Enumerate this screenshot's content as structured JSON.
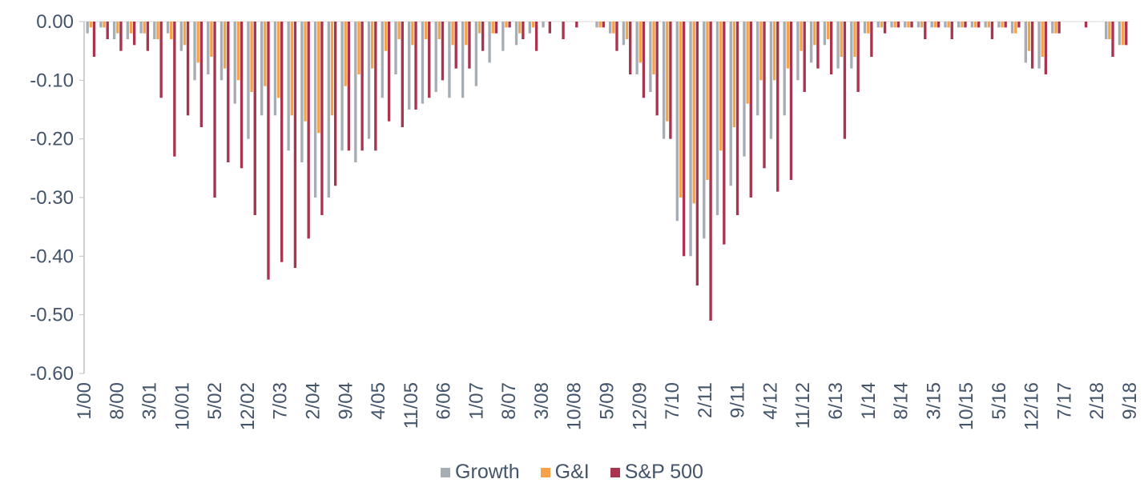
{
  "chart_data": {
    "type": "bar",
    "title": "",
    "xlabel": "",
    "ylabel": "",
    "ylim": [
      -0.6,
      0.0
    ],
    "y_ticks": [
      "0.00",
      "-0.10",
      "-0.20",
      "-0.30",
      "-0.40",
      "-0.50",
      "-0.60"
    ],
    "x_ticks": [
      "1/00",
      "8/00",
      "3/01",
      "10/01",
      "5/02",
      "12/02",
      "7/03",
      "2/04",
      "9/04",
      "4/05",
      "11/05",
      "6/06",
      "1/07",
      "8/07",
      "3/08",
      "10/08",
      "5/09",
      "12/09",
      "7/10",
      "2/11",
      "9/11",
      "4/12",
      "11/12",
      "6/13",
      "1/14",
      "8/14",
      "3/15",
      "10/15",
      "5/16",
      "12/16",
      "7/17",
      "2/18",
      "9/18"
    ],
    "legend_placement": "bottom",
    "grid": false,
    "series": [
      {
        "name": "Growth",
        "color": "#a6adb4",
        "values": [
          -0.02,
          -0.01,
          -0.03,
          -0.03,
          -0.02,
          -0.03,
          -0.02,
          -0.05,
          -0.1,
          -0.09,
          -0.1,
          -0.14,
          -0.2,
          -0.16,
          -0.16,
          -0.22,
          -0.24,
          -0.3,
          -0.3,
          -0.22,
          -0.24,
          -0.2,
          -0.13,
          -0.09,
          -0.15,
          -0.14,
          -0.12,
          -0.13,
          -0.13,
          -0.11,
          -0.07,
          -0.05,
          -0.04,
          -0.02,
          -0.01,
          0.0,
          0.0,
          0.0,
          -0.01,
          -0.02,
          -0.04,
          -0.09,
          -0.12,
          -0.2,
          -0.34,
          -0.4,
          -0.37,
          -0.33,
          -0.28,
          -0.23,
          -0.16,
          -0.2,
          -0.16,
          -0.1,
          -0.07,
          -0.04,
          -0.08,
          -0.08,
          -0.02,
          -0.01,
          -0.01,
          -0.01,
          -0.01,
          -0.01,
          -0.01,
          -0.01,
          -0.01,
          -0.01,
          -0.01,
          -0.02,
          -0.07,
          -0.08,
          -0.02,
          0.0,
          0.0,
          0.0,
          -0.03,
          -0.04
        ]
      },
      {
        "name": "G&I",
        "color": "#f5a24b",
        "values": [
          -0.01,
          -0.01,
          -0.02,
          -0.02,
          -0.02,
          -0.03,
          -0.03,
          -0.04,
          -0.07,
          -0.06,
          -0.08,
          -0.1,
          -0.12,
          -0.11,
          -0.13,
          -0.16,
          -0.17,
          -0.19,
          -0.16,
          -0.11,
          -0.09,
          -0.08,
          -0.05,
          -0.03,
          -0.04,
          -0.03,
          -0.03,
          -0.04,
          -0.04,
          -0.02,
          -0.02,
          -0.01,
          -0.02,
          -0.01,
          0.0,
          0.0,
          0.0,
          0.0,
          -0.01,
          -0.02,
          -0.03,
          -0.07,
          -0.09,
          -0.17,
          -0.3,
          -0.31,
          -0.27,
          -0.22,
          -0.18,
          -0.14,
          -0.1,
          -0.1,
          -0.08,
          -0.05,
          -0.04,
          -0.03,
          -0.06,
          -0.06,
          -0.02,
          -0.01,
          -0.01,
          -0.01,
          -0.01,
          -0.01,
          -0.01,
          -0.01,
          -0.01,
          -0.01,
          -0.01,
          -0.02,
          -0.05,
          -0.06,
          -0.02,
          0.0,
          0.0,
          0.0,
          -0.03,
          -0.04
        ]
      },
      {
        "name": "S&P 500",
        "color": "#a8344f",
        "values": [
          -0.06,
          -0.03,
          -0.05,
          -0.04,
          -0.05,
          -0.13,
          -0.23,
          -0.16,
          -0.18,
          -0.3,
          -0.24,
          -0.25,
          -0.33,
          -0.44,
          -0.41,
          -0.42,
          -0.37,
          -0.33,
          -0.28,
          -0.22,
          -0.22,
          -0.22,
          -0.17,
          -0.18,
          -0.15,
          -0.13,
          -0.1,
          -0.08,
          -0.08,
          -0.05,
          -0.02,
          -0.01,
          -0.03,
          -0.05,
          -0.02,
          -0.03,
          -0.01,
          0.0,
          -0.01,
          -0.05,
          -0.09,
          -0.13,
          -0.16,
          -0.2,
          -0.4,
          -0.45,
          -0.51,
          -0.38,
          -0.33,
          -0.3,
          -0.25,
          -0.29,
          -0.27,
          -0.12,
          -0.08,
          -0.09,
          -0.2,
          -0.12,
          -0.06,
          -0.02,
          -0.01,
          -0.01,
          -0.03,
          -0.01,
          -0.03,
          -0.01,
          -0.01,
          -0.03,
          -0.01,
          -0.01,
          -0.08,
          -0.09,
          -0.02,
          0.0,
          -0.01,
          0.0,
          -0.06,
          -0.04
        ]
      }
    ]
  }
}
